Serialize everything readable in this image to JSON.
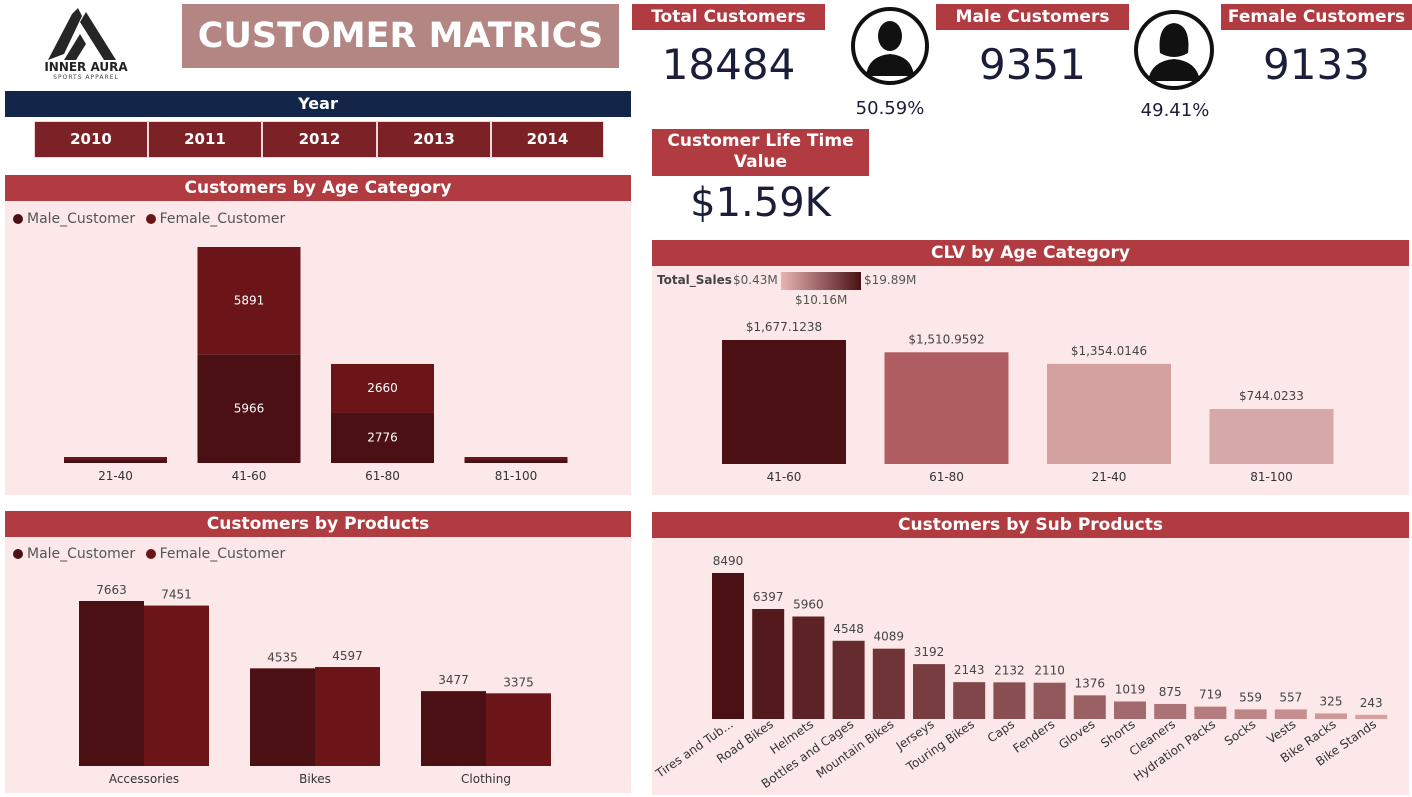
{
  "logo": {
    "name": "INNER AURA",
    "tagline": "SPORTS APPAREL"
  },
  "page_title": "CUSTOMER MATRICS",
  "year_filter": {
    "label": "Year",
    "options": [
      "2010",
      "2011",
      "2012",
      "2013",
      "2014"
    ]
  },
  "kpis": {
    "total_customers": {
      "label": "Total Customers",
      "value": "18484"
    },
    "male_customers": {
      "label": "Male Customers",
      "value": "9351",
      "pct": "50.59%"
    },
    "female_customers": {
      "label": "Female Customers",
      "value": "9133",
      "pct": "49.41%"
    },
    "clv": {
      "label": "Customer Life Time Value",
      "value": "$1.59K"
    }
  },
  "colors": {
    "header": "#b03c42",
    "panel": "#fce8e8",
    "male": "#4a1014",
    "female": "#6b1519",
    "navy": "#14254a",
    "kpi_text": "#1c1d3a"
  },
  "chart_data": [
    {
      "id": "age",
      "type": "bar",
      "stacked": true,
      "title": "Customers by Age Category",
      "categories": [
        "21-40",
        "41-60",
        "61-80",
        "81-100"
      ],
      "series": [
        {
          "name": "Male_Customer",
          "values": [
            55,
            5966,
            2776,
            46
          ]
        },
        {
          "name": "Female_Customer",
          "values": [
            52,
            5891,
            2660,
            48
          ]
        }
      ],
      "data_labels": [
        "",
        "5966|5891",
        "2776|2660",
        ""
      ],
      "legend": "top-left"
    },
    {
      "id": "clv_age",
      "type": "bar",
      "title": "CLV by Age Category",
      "categories": [
        "41-60",
        "61-80",
        "21-40",
        "81-100"
      ],
      "values": [
        1677.1238,
        1510.9592,
        1354.0146,
        744.0233
      ],
      "value_labels": [
        "$1,677.1238",
        "$1,510.9592",
        "$1,354.0146",
        "$744.0233"
      ],
      "color_legend": {
        "field": "Total_Sales",
        "min": "$0.43M",
        "mid": "$10.16M",
        "max": "$19.89M"
      }
    },
    {
      "id": "products",
      "type": "bar",
      "title": "Customers by Products",
      "categories": [
        "Accessories",
        "Bikes",
        "Clothing"
      ],
      "series": [
        {
          "name": "Male_Customer",
          "values": [
            7663,
            4535,
            3477
          ]
        },
        {
          "name": "Female_Customer",
          "values": [
            7451,
            4597,
            3375
          ]
        }
      ],
      "legend": "top-left"
    },
    {
      "id": "sub_products",
      "type": "bar",
      "title": "Customers by Sub Products",
      "categories": [
        "Tires and Tub...",
        "Road Bikes",
        "Helmets",
        "Bottles and Cages",
        "Mountain Bikes",
        "Jerseys",
        "Touring Bikes",
        "Caps",
        "Fenders",
        "Gloves",
        "Shorts",
        "Cleaners",
        "Hydration Packs",
        "Socks",
        "Vests",
        "Bike Racks",
        "Bike Stands"
      ],
      "values": [
        8490,
        6397,
        5960,
        4548,
        4089,
        3192,
        2143,
        2132,
        2110,
        1376,
        1019,
        875,
        719,
        559,
        557,
        325,
        243
      ]
    }
  ]
}
